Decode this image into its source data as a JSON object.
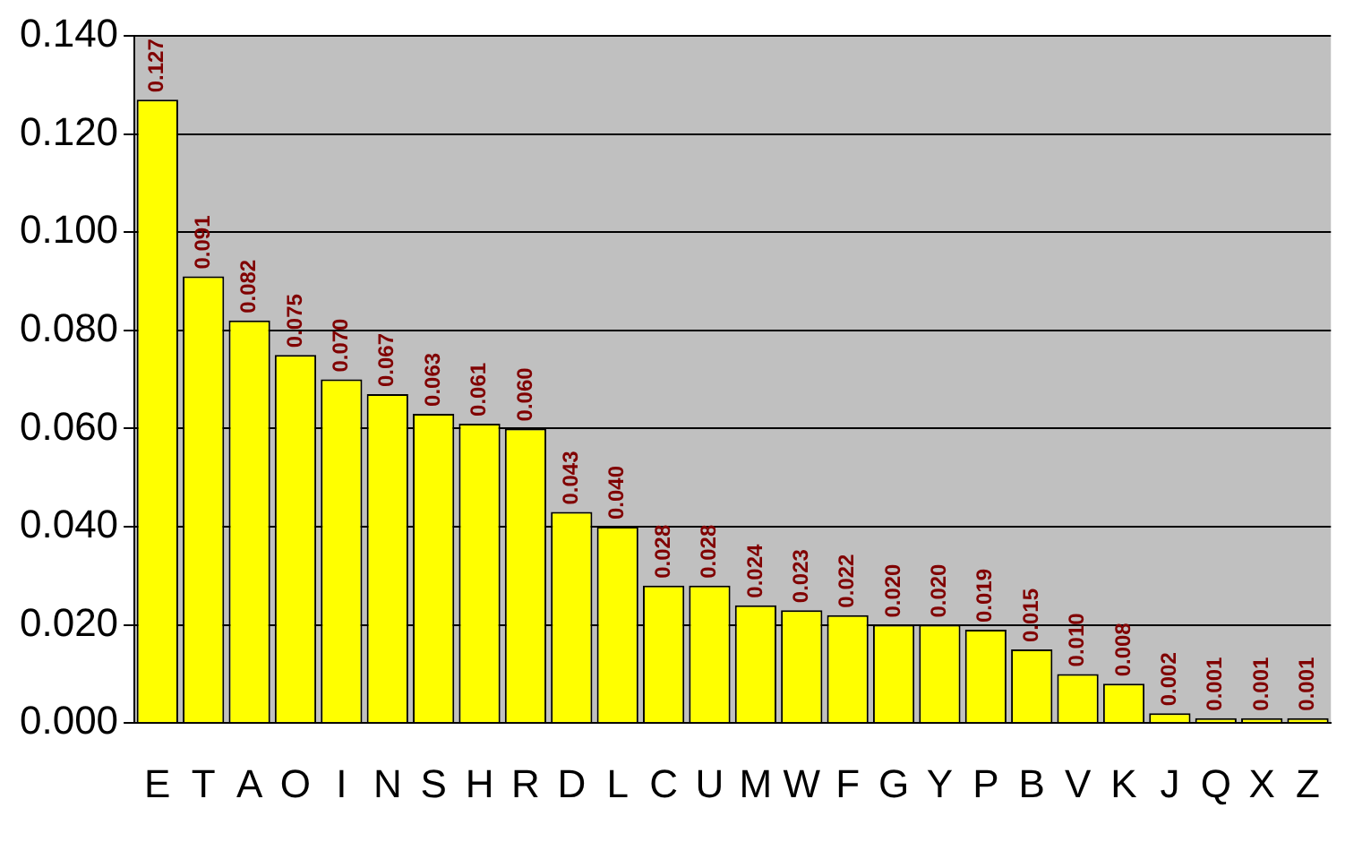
{
  "chart_data": {
    "type": "bar",
    "categories": [
      "E",
      "T",
      "A",
      "O",
      "I",
      "N",
      "S",
      "H",
      "R",
      "D",
      "L",
      "C",
      "U",
      "M",
      "W",
      "F",
      "G",
      "Y",
      "P",
      "B",
      "V",
      "K",
      "J",
      "Q",
      "X",
      "Z"
    ],
    "values": [
      0.127,
      0.091,
      0.082,
      0.075,
      0.07,
      0.067,
      0.063,
      0.061,
      0.06,
      0.043,
      0.04,
      0.028,
      0.028,
      0.024,
      0.023,
      0.022,
      0.02,
      0.02,
      0.019,
      0.015,
      0.01,
      0.008,
      0.002,
      0.001,
      0.001,
      0.001
    ],
    "value_labels": [
      "0.127",
      "0.091",
      "0.082",
      "0.075",
      "0.070",
      "0.067",
      "0.063",
      "0.061",
      "0.060",
      "0.043",
      "0.040",
      "0.028",
      "0.028",
      "0.024",
      "0.023",
      "0.022",
      "0.020",
      "0.020",
      "0.019",
      "0.015",
      "0.010",
      "0.008",
      "0.002",
      "0.001",
      "0.001",
      "0.001"
    ],
    "color": "#ffff00",
    "ylim": [
      0,
      0.14
    ],
    "yticks": [
      {
        "value": 0,
        "label": "0.000"
      },
      {
        "value": 0.02,
        "label": "0.020"
      },
      {
        "value": 0.04,
        "label": "0.040"
      },
      {
        "value": 0.06,
        "label": "0.060"
      },
      {
        "value": 0.08,
        "label": "0.080"
      },
      {
        "value": 0.1,
        "label": "0.100"
      },
      {
        "value": 0.12,
        "label": "0.120"
      },
      {
        "value": 0.14,
        "label": "0.140"
      }
    ],
    "grid": "y",
    "legend": false
  }
}
